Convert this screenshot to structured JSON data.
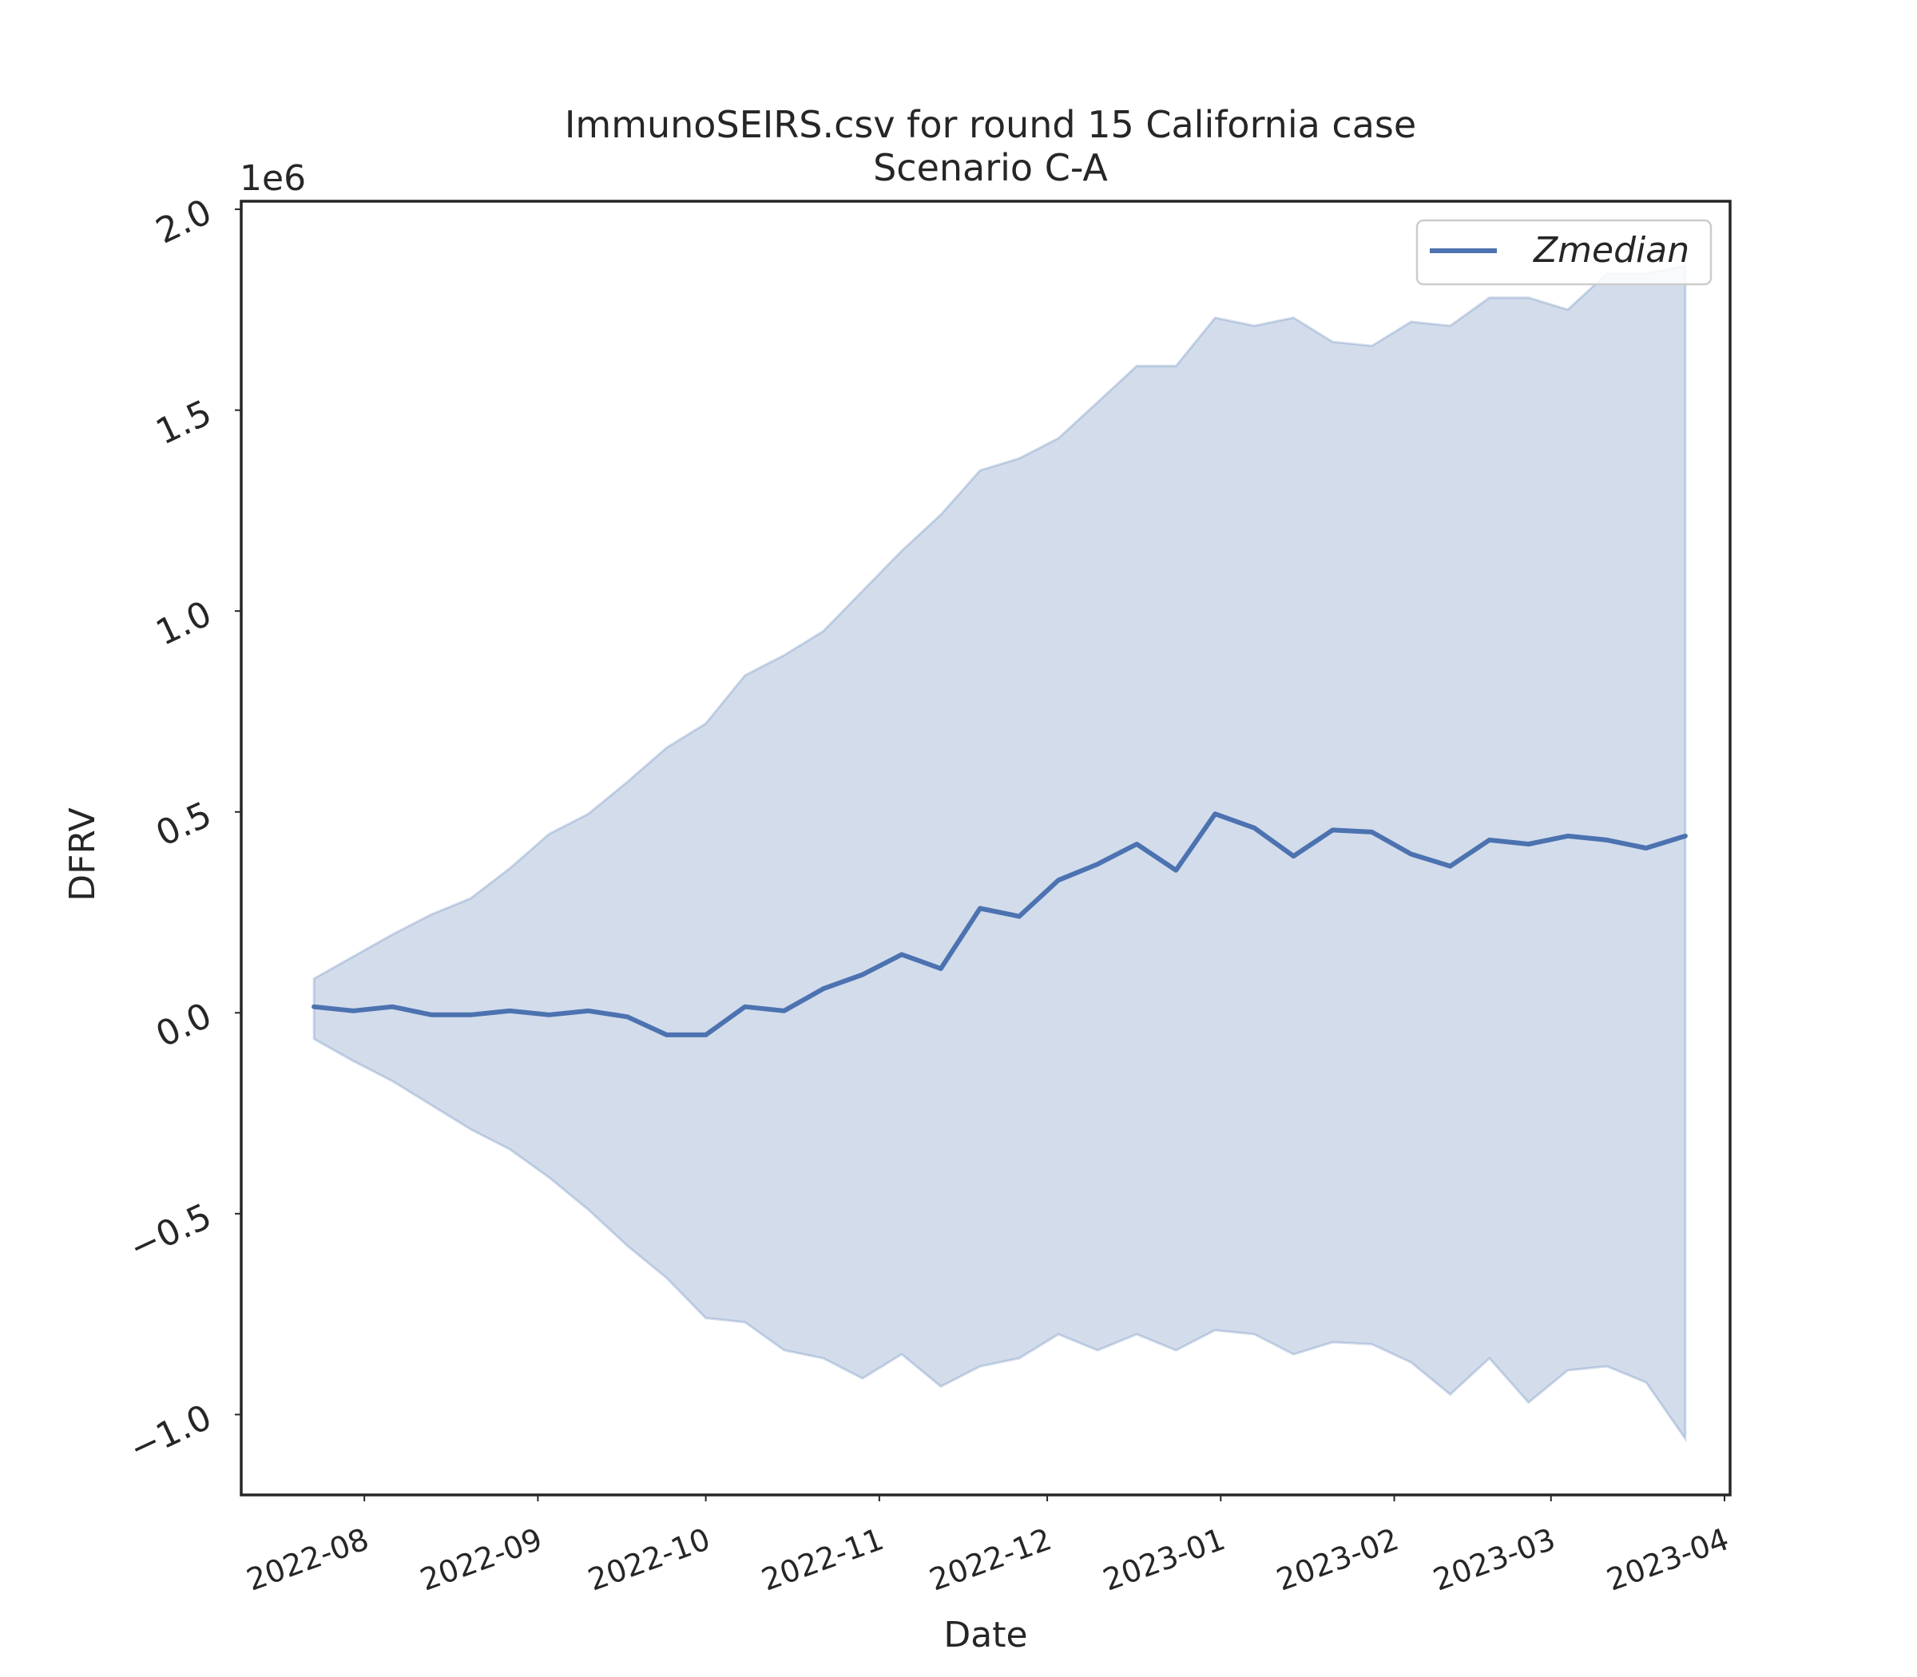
{
  "chart_data": {
    "type": "line",
    "title": "ImmunoSEIRS.csv for round 15 California case",
    "subtitle": "Scenario C-A",
    "xlabel": "Date",
    "ylabel": "DFRV",
    "y_offset_label": "1e6",
    "y_scale": 1000000,
    "xlim": [
      "2022-07-10",
      "2023-04-02"
    ],
    "ylim": [
      -1200000,
      2020000
    ],
    "x_ticks": [
      "2022-08-01",
      "2022-09-01",
      "2022-10-01",
      "2022-11-01",
      "2022-12-01",
      "2023-01-01",
      "2023-02-01",
      "2023-03-01",
      "2023-04-01"
    ],
    "x_tick_labels": [
      "2022-08",
      "2022-09",
      "2022-10",
      "2022-11",
      "2022-12",
      "2023-01",
      "2023-02",
      "2023-03",
      "2023-04"
    ],
    "y_ticks": [
      -1000000,
      -500000,
      0,
      500000,
      1000000,
      1500000,
      2000000
    ],
    "y_tick_labels": [
      "−1.0",
      "−0.5",
      "0.0",
      "0.5",
      "1.0",
      "1.5",
      "2.0"
    ],
    "grid": false,
    "legend_position": "top-right",
    "colors": {
      "line": "#4c72b0",
      "band": "#4c72b0",
      "axes": "#262626"
    },
    "x": [
      "2022-07-23",
      "2022-07-30",
      "2022-08-06",
      "2022-08-13",
      "2022-08-20",
      "2022-08-27",
      "2022-09-03",
      "2022-09-10",
      "2022-09-17",
      "2022-09-24",
      "2022-10-01",
      "2022-10-08",
      "2022-10-15",
      "2022-10-22",
      "2022-10-29",
      "2022-11-05",
      "2022-11-12",
      "2022-11-19",
      "2022-11-26",
      "2022-12-03",
      "2022-12-10",
      "2022-12-17",
      "2022-12-24",
      "2022-12-31",
      "2023-01-07",
      "2023-01-14",
      "2023-01-21",
      "2023-01-28",
      "2023-02-04",
      "2023-02-11",
      "2023-02-18",
      "2023-02-25",
      "2023-03-04",
      "2023-03-11",
      "2023-03-18",
      "2023-03-25"
    ],
    "series": [
      {
        "name": "Zmedian",
        "values": [
          15000,
          5000,
          15000,
          -5000,
          -5000,
          5000,
          -5000,
          5000,
          -10000,
          -55000,
          -55000,
          15000,
          5000,
          60000,
          95000,
          145000,
          110000,
          260000,
          240000,
          330000,
          370000,
          420000,
          355000,
          495000,
          460000,
          390000,
          455000,
          450000,
          395000,
          365000,
          430000,
          420000,
          440000,
          430000,
          410000,
          440000
        ]
      }
    ],
    "band": {
      "upper": [
        85000,
        140000,
        195000,
        245000,
        285000,
        360000,
        445000,
        495000,
        575000,
        660000,
        720000,
        840000,
        890000,
        950000,
        1050000,
        1150000,
        1240000,
        1350000,
        1380000,
        1430000,
        1520000,
        1610000,
        1610000,
        1730000,
        1710000,
        1730000,
        1670000,
        1660000,
        1720000,
        1710000,
        1780000,
        1780000,
        1750000,
        1840000,
        1840000,
        1860000
      ],
      "lower": [
        -65000,
        -120000,
        -170000,
        -230000,
        -290000,
        -340000,
        -410000,
        -490000,
        -580000,
        -660000,
        -760000,
        -770000,
        -840000,
        -860000,
        -910000,
        -850000,
        -930000,
        -880000,
        -860000,
        -800000,
        -840000,
        -800000,
        -840000,
        -790000,
        -800000,
        -850000,
        -820000,
        -825000,
        -870000,
        -950000,
        -860000,
        -970000,
        -890000,
        -880000,
        -920000,
        -1060000
      ]
    }
  }
}
